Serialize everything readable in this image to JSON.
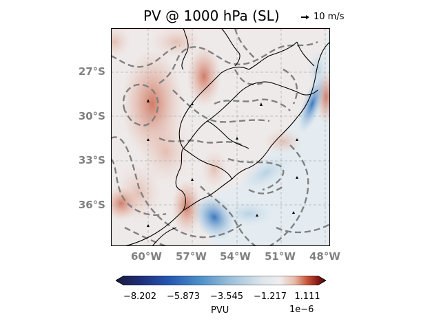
{
  "title": {
    "italic_part": "PV",
    "rest": " @ 1000 hPa (SL)"
  },
  "quiver_key": {
    "label": "10 m/s"
  },
  "chart_data": {
    "type": "heatmap",
    "map_extent_lon": [
      -62.5,
      -47.5
    ],
    "map_extent_lat": [
      -39.5,
      -24.5
    ],
    "lat_ticks": [
      {
        "value": -27,
        "label": "27°S"
      },
      {
        "value": -30,
        "label": "30°S"
      },
      {
        "value": -33,
        "label": "33°S"
      },
      {
        "value": -36,
        "label": "36°S"
      }
    ],
    "lon_ticks": [
      {
        "value": -60,
        "label": "60°W"
      },
      {
        "value": -57,
        "label": "57°W"
      },
      {
        "value": -54,
        "label": "54°W"
      },
      {
        "value": -51,
        "label": "51°W"
      },
      {
        "value": -48,
        "label": "48°W"
      }
    ],
    "grid": true,
    "colorbar": {
      "label": "PVU",
      "offset_text": "1e−6",
      "range": [
        -9.3,
        1.9
      ],
      "ticks": [
        {
          "value": -8.202,
          "label": "−8.202"
        },
        {
          "value": -5.873,
          "label": "−5.873"
        },
        {
          "value": -3.545,
          "label": "−3.545"
        },
        {
          "value": -1.217,
          "label": "−1.217"
        },
        {
          "value": 1.111,
          "label": "1.111"
        }
      ],
      "colormap": [
        "#1a1a3f",
        "#1e3a8a",
        "#2c66c0",
        "#6fa3d1",
        "#c9d9e6",
        "#eeeeee",
        "#e8b8a6",
        "#c8563a",
        "#8a1a1a",
        "#3d0a0a"
      ]
    },
    "colors": {
      "ocean_bg": "#e6eef3",
      "land_bg": "#eee8e6",
      "positive": "#c8563a",
      "negative": "#2a6cb8",
      "contour": "#808080",
      "grid": "#b0b0b0",
      "tick_text": "#808080"
    }
  }
}
